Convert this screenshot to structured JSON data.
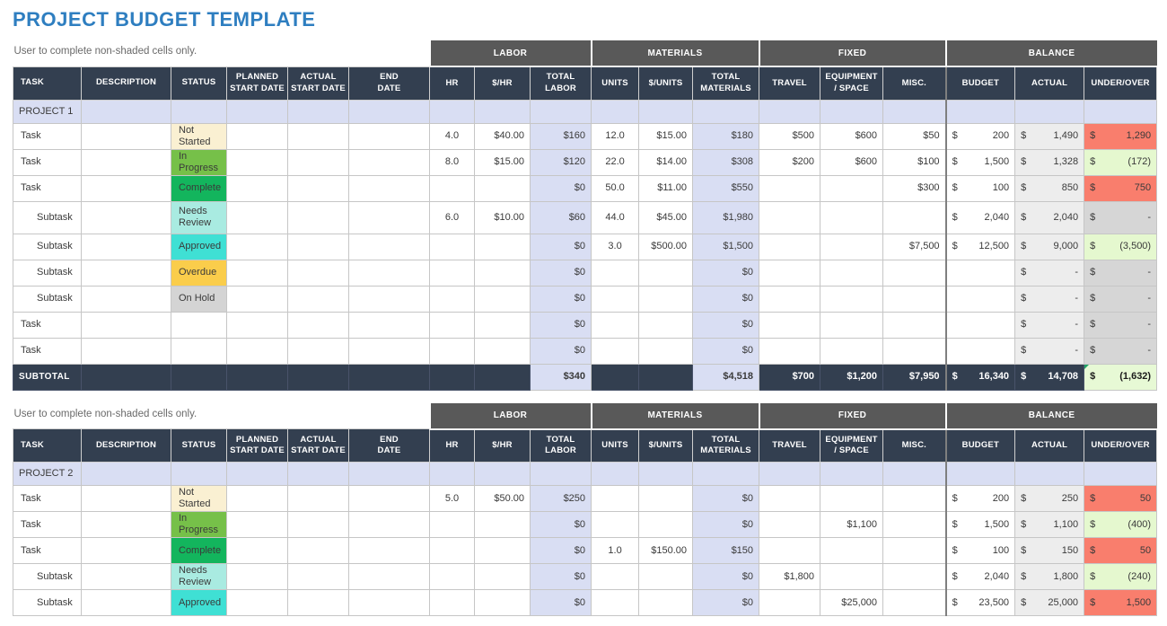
{
  "title": "PROJECT BUDGET TEMPLATE",
  "currency": "$",
  "palette": {
    "title_blue": "#2E7EC0",
    "header_navy": "#333F50",
    "group_gray": "#595959",
    "shaded_lavender": "#D9DEF3",
    "actual_column_gray": "#EDEDED",
    "grid_line": "#C6C6C6"
  },
  "status_colors": {
    "Not Started": "#FAF0D2",
    "In Progress": "#76C049",
    "Complete": "#13B55D",
    "Needs Review": "#A9EBE1",
    "Approved": "#3FE0D4",
    "Overdue": "#FACD4B",
    "On Hold": "#D4D4D4"
  },
  "balance_colors": {
    "over": "#F97E6D",
    "under": "#E5F8CF",
    "zero": "#D6D6D6",
    "subtotal": "#E7F9D5"
  },
  "columns": {
    "groups": [
      {
        "label": "LABOR"
      },
      {
        "label": "MATERIALS"
      },
      {
        "label": "FIXED"
      },
      {
        "label": "BALANCE"
      }
    ],
    "headers": [
      "TASK",
      "DESCRIPTION",
      "STATUS",
      "PLANNED\nSTART DATE",
      "ACTUAL\nSTART DATE",
      "END\nDATE",
      "HR",
      "$/HR",
      "TOTAL\nLABOR",
      "UNITS",
      "$/UNITS",
      "TOTAL\nMATERIALS",
      "TRAVEL",
      "EQUIPMENT\n/ SPACE",
      "MISC.",
      "BUDGET",
      "ACTUAL",
      "UNDER/OVER"
    ]
  },
  "sections": [
    {
      "note": "User to complete non-shaded cells only.",
      "project": "PROJECT 1",
      "rows": [
        {
          "task": "Task",
          "status": "Not Started",
          "hr": "4.0",
          "rate": "$40.00",
          "total_labor": "$160",
          "units": "12.0",
          "unit_rate": "$15.00",
          "total_materials": "$180",
          "travel": "$500",
          "equipment": "$600",
          "misc": "$50",
          "budget": "200",
          "actual": "1,490",
          "under": {
            "v": "1,290",
            "state": "over"
          }
        },
        {
          "task": "Task",
          "status": "In Progress",
          "hr": "8.0",
          "rate": "$15.00",
          "total_labor": "$120",
          "units": "22.0",
          "unit_rate": "$14.00",
          "total_materials": "$308",
          "travel": "$200",
          "equipment": "$600",
          "misc": "$100",
          "budget": "1,500",
          "actual": "1,328",
          "under": {
            "v": "(172)",
            "state": "under"
          }
        },
        {
          "task": "Task",
          "status": "Complete",
          "hr": "",
          "rate": "",
          "total_labor": "$0",
          "units": "50.0",
          "unit_rate": "$11.00",
          "total_materials": "$550",
          "travel": "",
          "equipment": "",
          "misc": "$300",
          "budget": "100",
          "actual": "850",
          "under": {
            "v": "750",
            "state": "over"
          }
        },
        {
          "task": "Subtask",
          "status": "Needs Review",
          "tall": true,
          "hr": "6.0",
          "rate": "$10.00",
          "total_labor": "$60",
          "units": "44.0",
          "unit_rate": "$45.00",
          "total_materials": "$1,980",
          "travel": "",
          "equipment": "",
          "misc": "",
          "budget": "2,040",
          "actual": "2,040",
          "under": {
            "v": "-",
            "state": "zero"
          }
        },
        {
          "task": "Subtask",
          "status": "Approved",
          "hr": "",
          "rate": "",
          "total_labor": "$0",
          "units": "3.0",
          "unit_rate": "$500.00",
          "total_materials": "$1,500",
          "travel": "",
          "equipment": "",
          "misc": "$7,500",
          "budget": "12,500",
          "actual": "9,000",
          "under": {
            "v": "(3,500)",
            "state": "under"
          }
        },
        {
          "task": "Subtask",
          "status": "Overdue",
          "hr": "",
          "rate": "",
          "total_labor": "$0",
          "units": "",
          "unit_rate": "",
          "total_materials": "$0",
          "travel": "",
          "equipment": "",
          "misc": "",
          "budget": null,
          "actual": "-",
          "under": {
            "v": "-",
            "state": "zero"
          }
        },
        {
          "task": "Subtask",
          "status": "On Hold",
          "hr": "",
          "rate": "",
          "total_labor": "$0",
          "units": "",
          "unit_rate": "",
          "total_materials": "$0",
          "travel": "",
          "equipment": "",
          "misc": "",
          "budget": null,
          "actual": "-",
          "under": {
            "v": "-",
            "state": "zero"
          }
        },
        {
          "task": "Task",
          "status": null,
          "hr": "",
          "rate": "",
          "total_labor": "$0",
          "units": "",
          "unit_rate": "",
          "total_materials": "$0",
          "travel": "",
          "equipment": "",
          "misc": "",
          "budget": null,
          "actual": "-",
          "under": {
            "v": "-",
            "state": "zero"
          }
        },
        {
          "task": "Task",
          "status": null,
          "hr": "",
          "rate": "",
          "total_labor": "$0",
          "units": "",
          "unit_rate": "",
          "total_materials": "$0",
          "travel": "",
          "equipment": "",
          "misc": "",
          "budget": null,
          "actual": "-",
          "under": {
            "v": "-",
            "state": "zero"
          }
        }
      ],
      "subtotal": {
        "label": "SUBTOTAL",
        "total_labor": "$340",
        "total_materials": "$4,518",
        "travel": "$700",
        "equipment": "$1,200",
        "misc": "$7,950",
        "budget": "16,340",
        "actual": "14,708",
        "under": {
          "v": "(1,632)",
          "state": "subtotal"
        }
      }
    },
    {
      "note": "User to complete non-shaded cells only.",
      "project": "PROJECT 2",
      "rows": [
        {
          "task": "Task",
          "status": "Not Started",
          "hr": "5.0",
          "rate": "$50.00",
          "total_labor": "$250",
          "units": "",
          "unit_rate": "",
          "total_materials": "$0",
          "travel": "",
          "equipment": "",
          "misc": "",
          "budget": "200",
          "actual": "250",
          "under": {
            "v": "50",
            "state": "over"
          }
        },
        {
          "task": "Task",
          "status": "In Progress",
          "hr": "",
          "rate": "",
          "total_labor": "$0",
          "units": "",
          "unit_rate": "",
          "total_materials": "$0",
          "travel": "",
          "equipment": "$1,100",
          "misc": "",
          "budget": "1,500",
          "actual": "1,100",
          "under": {
            "v": "(400)",
            "state": "under"
          }
        },
        {
          "task": "Task",
          "status": "Complete",
          "hr": "",
          "rate": "",
          "total_labor": "$0",
          "units": "1.0",
          "unit_rate": "$150.00",
          "total_materials": "$150",
          "travel": "",
          "equipment": "",
          "misc": "",
          "budget": "100",
          "actual": "150",
          "under": {
            "v": "50",
            "state": "over"
          }
        },
        {
          "task": "Subtask",
          "status": "Needs Review",
          "hr": "",
          "rate": "",
          "total_labor": "$0",
          "units": "",
          "unit_rate": "",
          "total_materials": "$0",
          "travel": "$1,800",
          "equipment": "",
          "misc": "",
          "budget": "2,040",
          "actual": "1,800",
          "under": {
            "v": "(240)",
            "state": "under"
          }
        },
        {
          "task": "Subtask",
          "status": "Approved",
          "hr": "",
          "rate": "",
          "total_labor": "$0",
          "units": "",
          "unit_rate": "",
          "total_materials": "$0",
          "travel": "",
          "equipment": "$25,000",
          "misc": "",
          "budget": "23,500",
          "actual": "25,000",
          "under": {
            "v": "1,500",
            "state": "over"
          }
        }
      ],
      "subtotal": null
    }
  ]
}
